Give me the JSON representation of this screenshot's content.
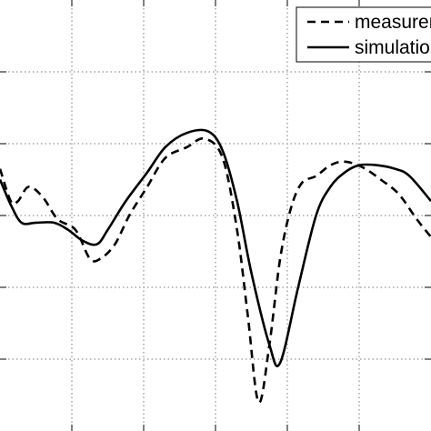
{
  "chart_data": {
    "type": "line",
    "title": "",
    "xlabel": "",
    "ylabel": "",
    "xlim": [
      0,
      12
    ],
    "ylim": [
      -6,
      0
    ],
    "grid": true,
    "grid_style": "dotted",
    "legend_position": "top-right",
    "series": [
      {
        "name": "measurement",
        "line_style": "dashed",
        "color": "#000000",
        "x": [
          0.0,
          0.3,
          0.5,
          0.8,
          1.2,
          1.6,
          2.1,
          2.5,
          2.8,
          3.2,
          3.6,
          4.1,
          4.6,
          5.2,
          5.7,
          6.2,
          6.6,
          6.9,
          7.2,
          7.5,
          7.8,
          8.1,
          8.4,
          8.8,
          9.2,
          9.6,
          10.1,
          10.6,
          11.1,
          11.6,
          12.0
        ],
        "y": [
          -2.35,
          -2.8,
          -2.8,
          -2.6,
          -2.75,
          -3.05,
          -3.2,
          -3.6,
          -3.6,
          -3.4,
          -3.0,
          -2.6,
          -2.2,
          -2.05,
          -1.93,
          -2.2,
          -3.2,
          -4.4,
          -5.6,
          -4.8,
          -3.6,
          -2.9,
          -2.55,
          -2.45,
          -2.3,
          -2.25,
          -2.33,
          -2.5,
          -2.7,
          -3.05,
          -3.3
        ]
      },
      {
        "name": "simulation",
        "line_style": "solid",
        "color": "#000000",
        "x": [
          0.0,
          0.3,
          0.6,
          1.0,
          1.5,
          1.9,
          2.3,
          2.7,
          3.0,
          3.5,
          4.1,
          4.6,
          5.2,
          5.8,
          6.2,
          6.6,
          7.0,
          7.5,
          7.8,
          8.3,
          8.8,
          9.2,
          9.6,
          10.0,
          10.5,
          11.0,
          11.4,
          12.0
        ],
        "y": [
          -2.5,
          -2.85,
          -3.1,
          -3.1,
          -3.1,
          -3.2,
          -3.35,
          -3.4,
          -3.2,
          -2.8,
          -2.4,
          -2.05,
          -1.85,
          -1.83,
          -2.1,
          -2.8,
          -3.8,
          -4.8,
          -5.05,
          -4.0,
          -3.0,
          -2.6,
          -2.4,
          -2.3,
          -2.3,
          -2.35,
          -2.45,
          -2.8
        ]
      }
    ]
  }
}
